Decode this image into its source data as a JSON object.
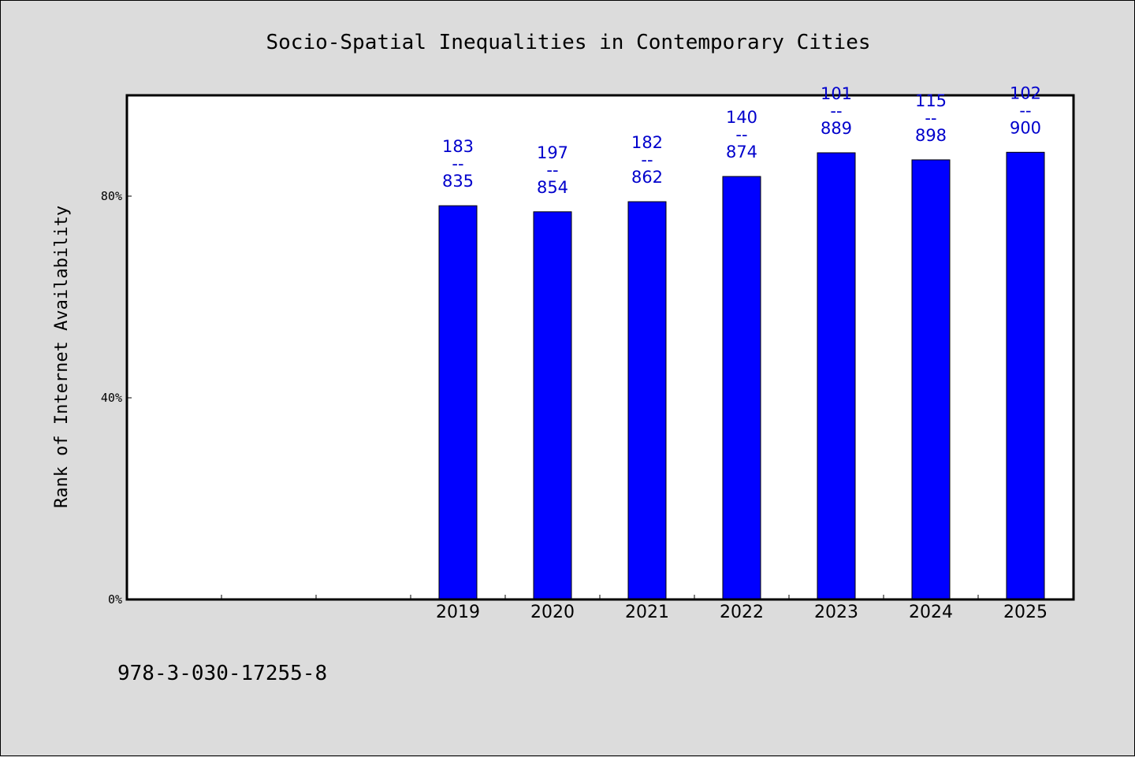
{
  "chart_data": {
    "type": "bar",
    "title": "Socio-Spatial Inequalities in Contemporary Cities",
    "xlabel": "",
    "ylabel": "Rank of Internet Availability",
    "categories": [
      "",
      "",
      "",
      "2019",
      "2020",
      "2021",
      "2022",
      "2023",
      "2024",
      "2025"
    ],
    "values": [
      null,
      null,
      null,
      78.1,
      76.9,
      78.9,
      83.9,
      88.6,
      87.2,
      88.7
    ],
    "data_labels": [
      "",
      "",
      "",
      "183\n--\n835",
      "197\n--\n854",
      "182\n--\n862",
      "140\n--\n874",
      "101\n--\n889",
      "115\n--\n898",
      "102\n--\n900"
    ],
    "ylim": [
      0,
      100
    ],
    "yticks": [
      0,
      40,
      80
    ],
    "ytick_labels": [
      "0%",
      "40%",
      "80%"
    ],
    "grid": false,
    "legend": "none",
    "bar_color": "#0000ff",
    "label_color": "#0000cc",
    "plot_background": "#ffffff",
    "figure_background": "#dcdcdc"
  },
  "footer": {
    "isbn": "978-3-030-17255-8"
  }
}
